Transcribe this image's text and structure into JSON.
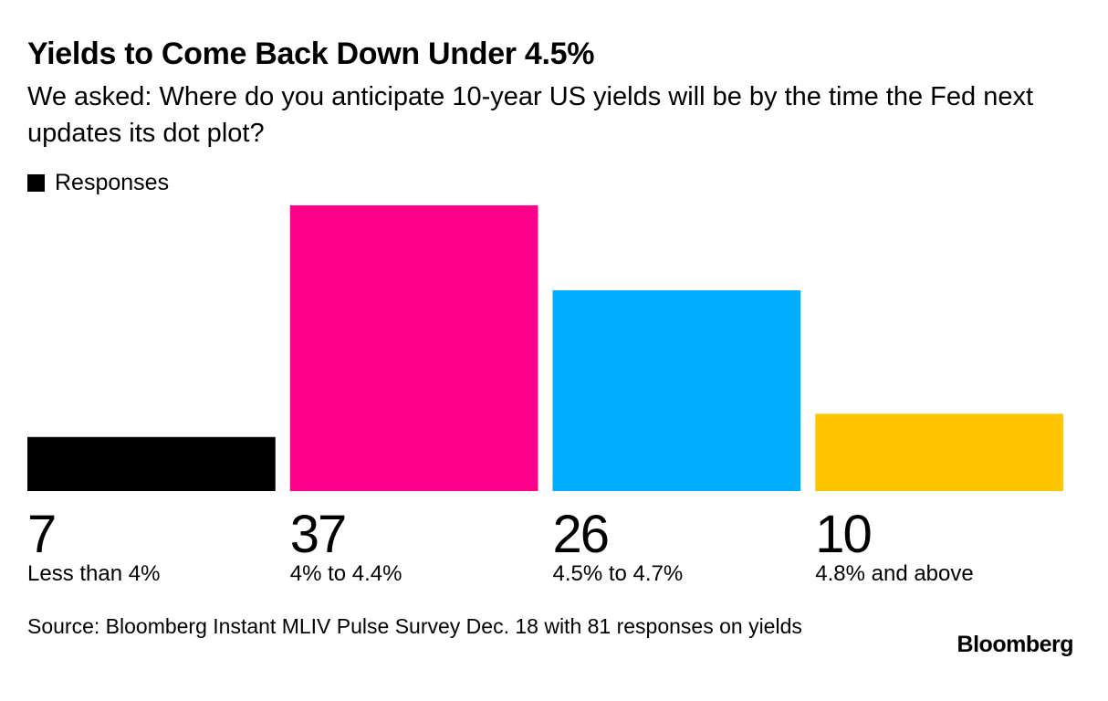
{
  "title": "Yields to Come Back Down Under 4.5%",
  "subtitle": "We asked: Where do you anticipate 10-year US yields will be by the time the Fed next updates its dot plot?",
  "legend": {
    "label": "Responses",
    "color": "#000000"
  },
  "source": "Source: Bloomberg Instant MLIV Pulse Survey Dec. 18 with 81 responses on yields",
  "logo": "Bloomberg",
  "chart_data": {
    "type": "bar",
    "title": "Yields to Come Back Down Under 4.5%",
    "categories": [
      "Less than 4%",
      "4% to 4.4%",
      "4.5% to 4.7%",
      "4.8% and above"
    ],
    "series": [
      {
        "name": "Responses",
        "values": [
          7,
          37,
          26,
          10
        ]
      }
    ],
    "colors": [
      "#000000",
      "#ff008c",
      "#00adff",
      "#ffc300"
    ],
    "xlabel": "",
    "ylabel": "",
    "ylim": [
      0,
      37
    ],
    "grid": false,
    "legend_position": "top-left"
  }
}
